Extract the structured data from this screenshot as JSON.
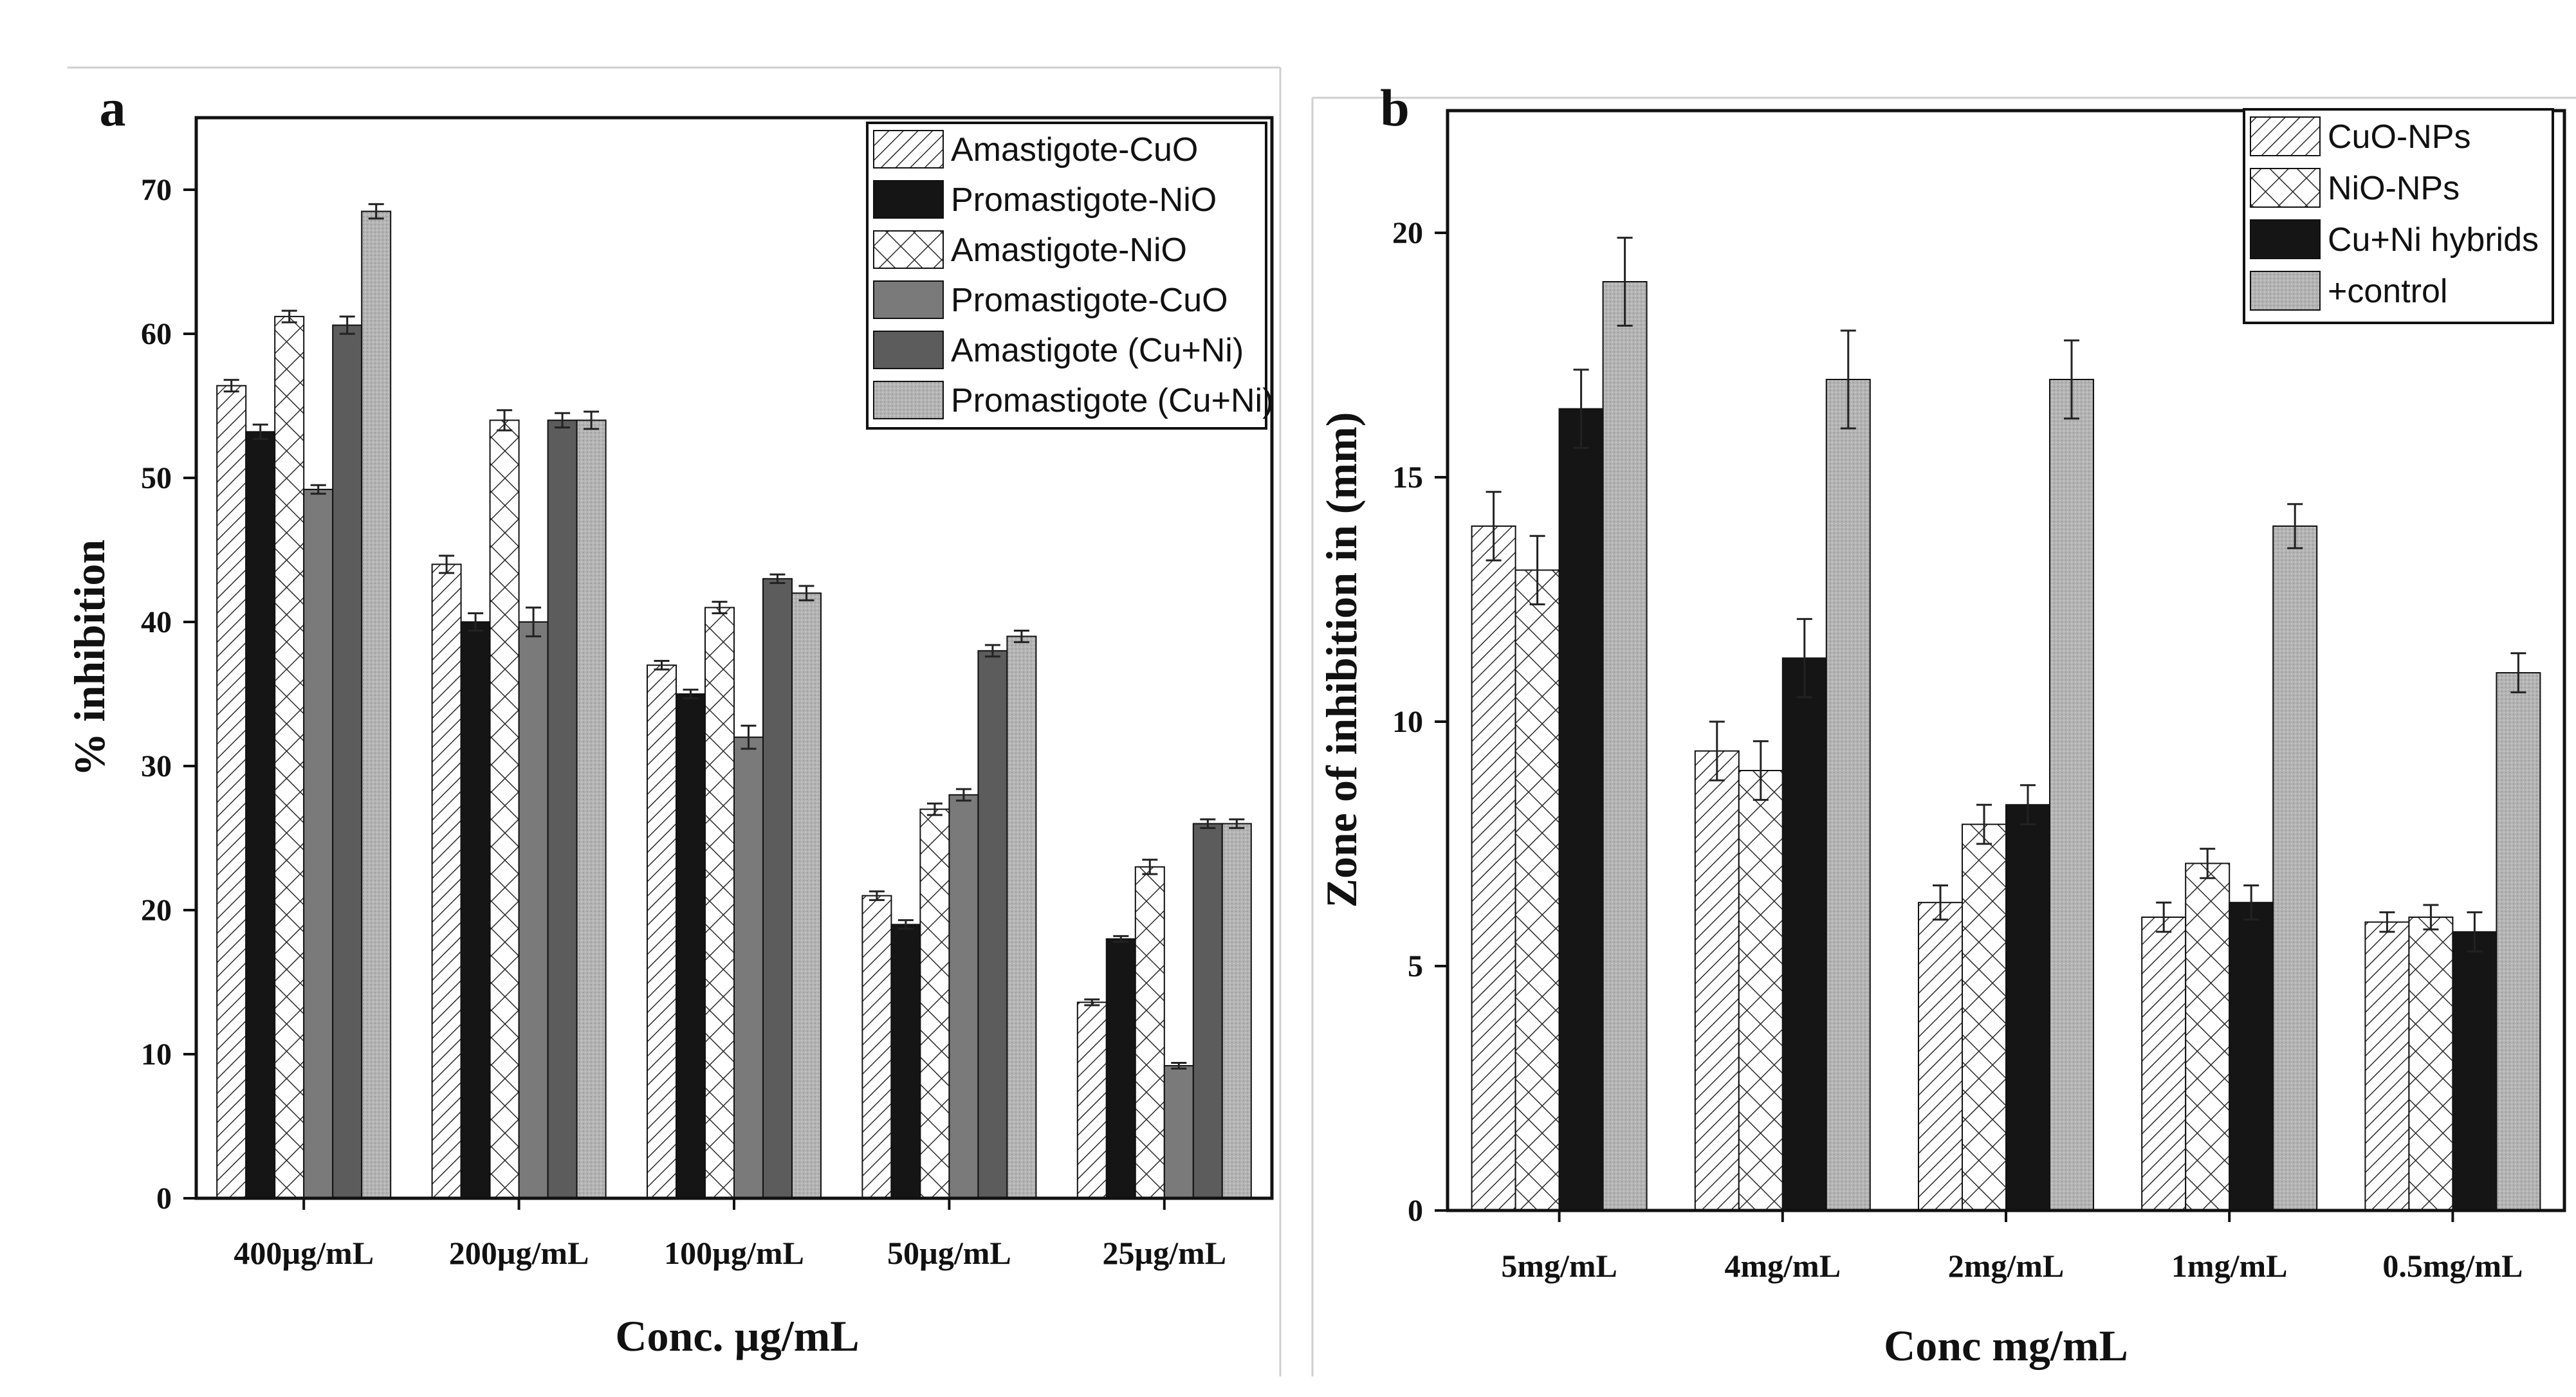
{
  "chart_data": [
    {
      "panel_label": "a",
      "type": "bar",
      "title": "",
      "xlabel": "Conc. µg/mL",
      "ylabel": "% inhibition",
      "ylim": [
        0,
        75
      ],
      "yticks": [
        0,
        10,
        20,
        30,
        40,
        50,
        60,
        70
      ],
      "ytick_labels": [
        "0",
        "10",
        "20",
        "30",
        "40",
        "50",
        "60",
        "70"
      ],
      "categories": [
        "400µg/mL",
        "200µg/mL",
        "100µg/mL",
        "50µg/mL",
        "25µg/mL"
      ],
      "legend_position": "top-right",
      "series": [
        {
          "name": "Amastigote-CuO",
          "pattern": "hatch",
          "values": [
            56.4,
            44.0,
            37.0,
            21.0,
            13.6
          ],
          "errors": [
            0.4,
            0.6,
            0.3,
            0.3,
            0.2
          ]
        },
        {
          "name": "Promastigote-NiO",
          "pattern": "black",
          "values": [
            53.2,
            40.0,
            35.0,
            19.0,
            18.0
          ],
          "errors": [
            0.5,
            0.6,
            0.3,
            0.3,
            0.2
          ]
        },
        {
          "name": "Amastigote-NiO",
          "pattern": "cross",
          "values": [
            61.2,
            54.0,
            41.0,
            27.0,
            23.0
          ],
          "errors": [
            0.4,
            0.7,
            0.4,
            0.4,
            0.5
          ]
        },
        {
          "name": "Promastigote-CuO",
          "pattern": "mid",
          "values": [
            49.2,
            40.0,
            32.0,
            28.0,
            9.2
          ],
          "errors": [
            0.3,
            1.0,
            0.8,
            0.4,
            0.2
          ]
        },
        {
          "name": "Amastigote (Cu+Ni)",
          "pattern": "dark",
          "values": [
            60.6,
            54.0,
            43.0,
            38.0,
            26.0
          ],
          "errors": [
            0.6,
            0.5,
            0.3,
            0.4,
            0.3
          ]
        },
        {
          "name": "Promastigote (Cu+Ni)",
          "pattern": "light",
          "values": [
            68.5,
            54.0,
            42.0,
            39.0,
            26.0
          ],
          "errors": [
            0.5,
            0.6,
            0.5,
            0.4,
            0.3
          ]
        }
      ]
    },
    {
      "panel_label": "b",
      "type": "bar",
      "title": "",
      "xlabel": "Conc mg/mL",
      "ylabel": "Zone of inhibition in (mm)",
      "ylim": [
        0,
        22.5
      ],
      "yticks": [
        0,
        5,
        10,
        15,
        20
      ],
      "ytick_labels": [
        "0",
        "5",
        "10",
        "15",
        "20"
      ],
      "categories": [
        "5mg/mL",
        "4mg/mL",
        "2mg/mL",
        "1mg/mL",
        "0.5mg/mL"
      ],
      "legend_position": "top-right",
      "series": [
        {
          "name": "CuO-NPs",
          "pattern": "hatch",
          "values": [
            14.0,
            9.4,
            6.3,
            6.0,
            5.9
          ],
          "errors": [
            0.7,
            0.6,
            0.35,
            0.3,
            0.2
          ]
        },
        {
          "name": "NiO-NPs",
          "pattern": "cross",
          "values": [
            13.1,
            9.0,
            7.9,
            7.1,
            6.0
          ],
          "errors": [
            0.7,
            0.6,
            0.4,
            0.3,
            0.25
          ]
        },
        {
          "name": "Cu+Ni hybrids",
          "pattern": "black",
          "values": [
            16.4,
            11.3,
            8.3,
            6.3,
            5.7
          ],
          "errors": [
            0.8,
            0.8,
            0.4,
            0.35,
            0.4
          ]
        },
        {
          "name": "+control",
          "pattern": "light",
          "values": [
            19.0,
            17.0,
            17.0,
            14.0,
            11.0
          ],
          "errors": [
            0.9,
            1.0,
            0.8,
            0.45,
            0.4
          ]
        }
      ]
    }
  ]
}
